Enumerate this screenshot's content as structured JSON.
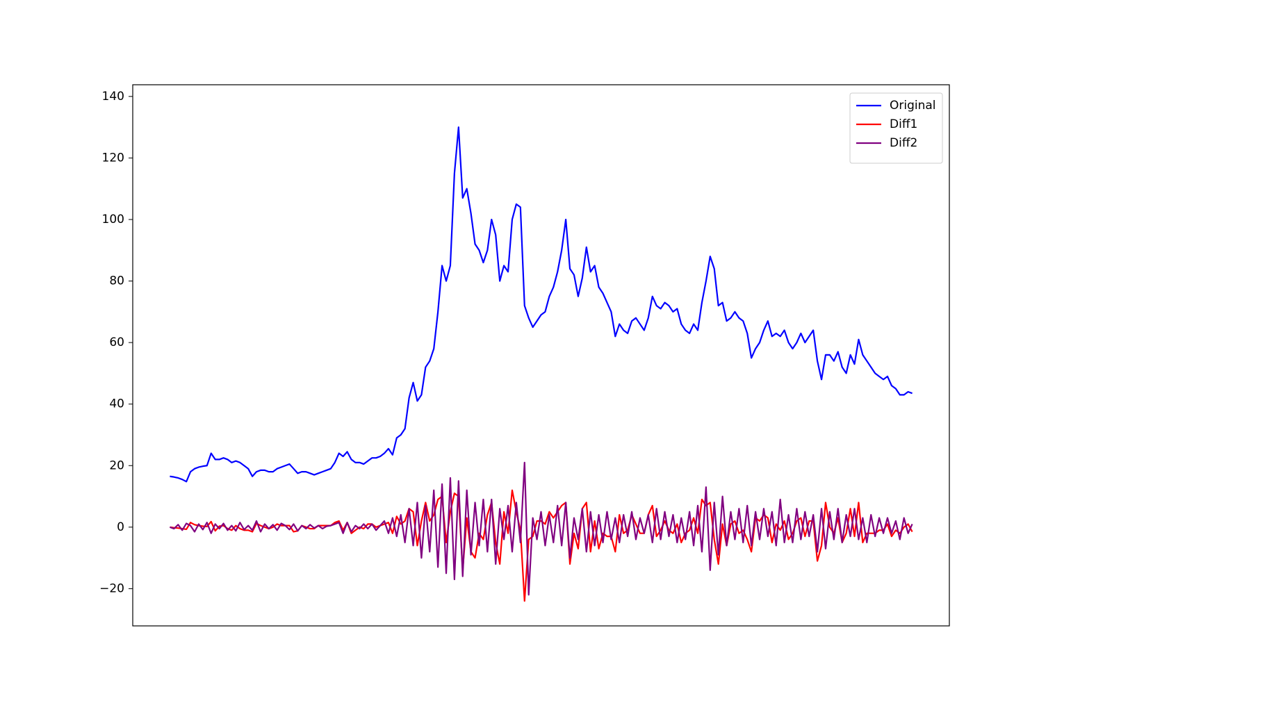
{
  "chart_data": {
    "type": "line",
    "legend": "upper right",
    "ylim": [
      -32.1,
      143.8
    ],
    "yticks": [
      {
        "value": -20,
        "label": "−20"
      },
      0,
      20,
      40,
      60,
      80,
      100,
      120,
      140
    ],
    "series": [
      {
        "name": "Original",
        "color": "#0000ff",
        "values": [
          16.5,
          16.3,
          16,
          15.5,
          14.8,
          18,
          19,
          19.5,
          19.8,
          20,
          24,
          22,
          22,
          22.5,
          22,
          21,
          21.5,
          21,
          20,
          19,
          16.5,
          18,
          18.5,
          18.5,
          18,
          18,
          19,
          19.5,
          20,
          20.5,
          19,
          17.5,
          18,
          18,
          17.5,
          17,
          17.5,
          18,
          18.5,
          19,
          21,
          24,
          23,
          24.5,
          22,
          21,
          21,
          20.5,
          21.5,
          22.5,
          22.5,
          23,
          24,
          25.5,
          23.5,
          29,
          30,
          32,
          42,
          47,
          41,
          43,
          52,
          54,
          58,
          70,
          85,
          80,
          85,
          115,
          130,
          107,
          110,
          102,
          92,
          90,
          86,
          90,
          100,
          95,
          80,
          85,
          83,
          100,
          105,
          104,
          72,
          68,
          65,
          67,
          69,
          70,
          75,
          78,
          83,
          90,
          100,
          84,
          82,
          75,
          81,
          91,
          83,
          85,
          78,
          76,
          73,
          70,
          62,
          66,
          64,
          63,
          67,
          68,
          66,
          64,
          68,
          75,
          72,
          71,
          73,
          72,
          70,
          71,
          66,
          64,
          63,
          66,
          64,
          73,
          80,
          88,
          84,
          72,
          73,
          67,
          68,
          70,
          68,
          67,
          63,
          55,
          58,
          60,
          64,
          67,
          62,
          63,
          62,
          64,
          60,
          58,
          60,
          63,
          60,
          62,
          64,
          54,
          48,
          56,
          56,
          54,
          57,
          52,
          50,
          56,
          53,
          61,
          56,
          54,
          52,
          50,
          49,
          48,
          49,
          46,
          45,
          43,
          43,
          44,
          43.5
        ]
      },
      {
        "name": "Diff1",
        "color": "#ff0000",
        "values": [
          0,
          -0.2,
          -0.3,
          -0.5,
          -0.7,
          1.5,
          0.8,
          0.5,
          0.3,
          0.2,
          1.8,
          -1.2,
          0.3,
          0.5,
          -0.5,
          -1,
          0.5,
          -0.5,
          -1,
          -1,
          -1.5,
          1.2,
          0.5,
          0,
          -0.5,
          0,
          1,
          0.5,
          0.5,
          0.5,
          -1.5,
          -1.2,
          0.5,
          0,
          -0.5,
          -0.5,
          0.5,
          0.5,
          0.5,
          0.5,
          1.5,
          2,
          -1,
          1.5,
          -2,
          -1,
          0,
          -0.5,
          1,
          1,
          0,
          0.5,
          1,
          1.5,
          -2,
          3.5,
          1,
          2,
          6,
          5,
          -6,
          2,
          8,
          2,
          4,
          9,
          10,
          -5,
          5,
          11,
          10,
          -14,
          3,
          -8,
          -10,
          -2,
          -4,
          4,
          8,
          -5,
          -12,
          5,
          -2,
          12,
          5,
          -1,
          -24,
          -4,
          -3,
          2,
          2,
          1,
          5,
          3,
          5,
          7,
          8,
          -12,
          -2,
          -7,
          6,
          8,
          -8,
          2,
          -7,
          -2,
          -3,
          -3,
          -8,
          4,
          -2,
          -1,
          4,
          1,
          -2,
          -2,
          4,
          7,
          -3,
          -1,
          2,
          -1,
          -2,
          1,
          -5,
          -2,
          -1,
          3,
          -2,
          9,
          7,
          8,
          -4,
          -12,
          1,
          -6,
          1,
          2,
          -2,
          -1,
          -4,
          -8,
          3,
          2,
          4,
          3,
          -5,
          1,
          -1,
          2,
          -4,
          -2,
          2,
          3,
          -3,
          2,
          2,
          -11,
          -6,
          8,
          0,
          -2,
          3,
          -5,
          -2,
          6,
          -3,
          8,
          -5,
          -2,
          -2,
          -2,
          -1,
          -1,
          1,
          -3,
          -1,
          -2,
          0,
          1,
          -1.5
        ]
      },
      {
        "name": "Diff2",
        "color": "#800080",
        "values": [
          0,
          -0.5,
          0.8,
          -1,
          1.2,
          0.5,
          -1.5,
          1,
          -0.8,
          1.5,
          -2,
          1,
          -0.5,
          1.2,
          -1,
          0.5,
          -1.2,
          1.5,
          -0.8,
          0.5,
          -1,
          2,
          -1.5,
          1,
          -0.5,
          0.8,
          -1,
          1.2,
          0.5,
          -0.8,
          1,
          -1.2,
          0.5,
          -0.5,
          0.8,
          -0.3,
          0.5,
          -0.5,
          0.3,
          0.5,
          1,
          1.5,
          -2,
          1.5,
          -1.5,
          0.5,
          -0.5,
          1,
          -0.5,
          1,
          -1,
          0.5,
          2,
          -2,
          3,
          -3,
          4,
          -5,
          6,
          -6,
          8,
          -10,
          7,
          -8,
          12,
          -13,
          14,
          -15,
          16,
          -17,
          15,
          -16,
          12,
          -9,
          8,
          -6,
          9,
          -8,
          9,
          -12,
          6,
          -4,
          7,
          -8,
          8,
          -5,
          21,
          -22,
          3,
          -4,
          5,
          -6,
          4,
          -5,
          7,
          -6,
          8,
          -10,
          3,
          -4,
          6,
          -8,
          5,
          -6,
          4,
          -5,
          5,
          -4,
          3,
          -5,
          4,
          -3,
          5,
          -4,
          3,
          -2,
          4,
          -5,
          6,
          -4,
          5,
          -3,
          4,
          -5,
          3,
          -4,
          5,
          -6,
          7,
          -8,
          13,
          -14,
          8,
          -9,
          10,
          -6,
          5,
          -4,
          6,
          -5,
          7,
          -6,
          5,
          -4,
          6,
          -3,
          5,
          -6,
          9,
          -5,
          4,
          -5,
          6,
          -4,
          5,
          -3,
          4,
          -8,
          6,
          -7,
          5,
          -4,
          6,
          -5,
          4,
          -3,
          6,
          -4,
          3,
          -5,
          4,
          -3,
          3,
          -2,
          3,
          -2,
          2,
          -4,
          3,
          -2,
          1
        ]
      }
    ]
  }
}
